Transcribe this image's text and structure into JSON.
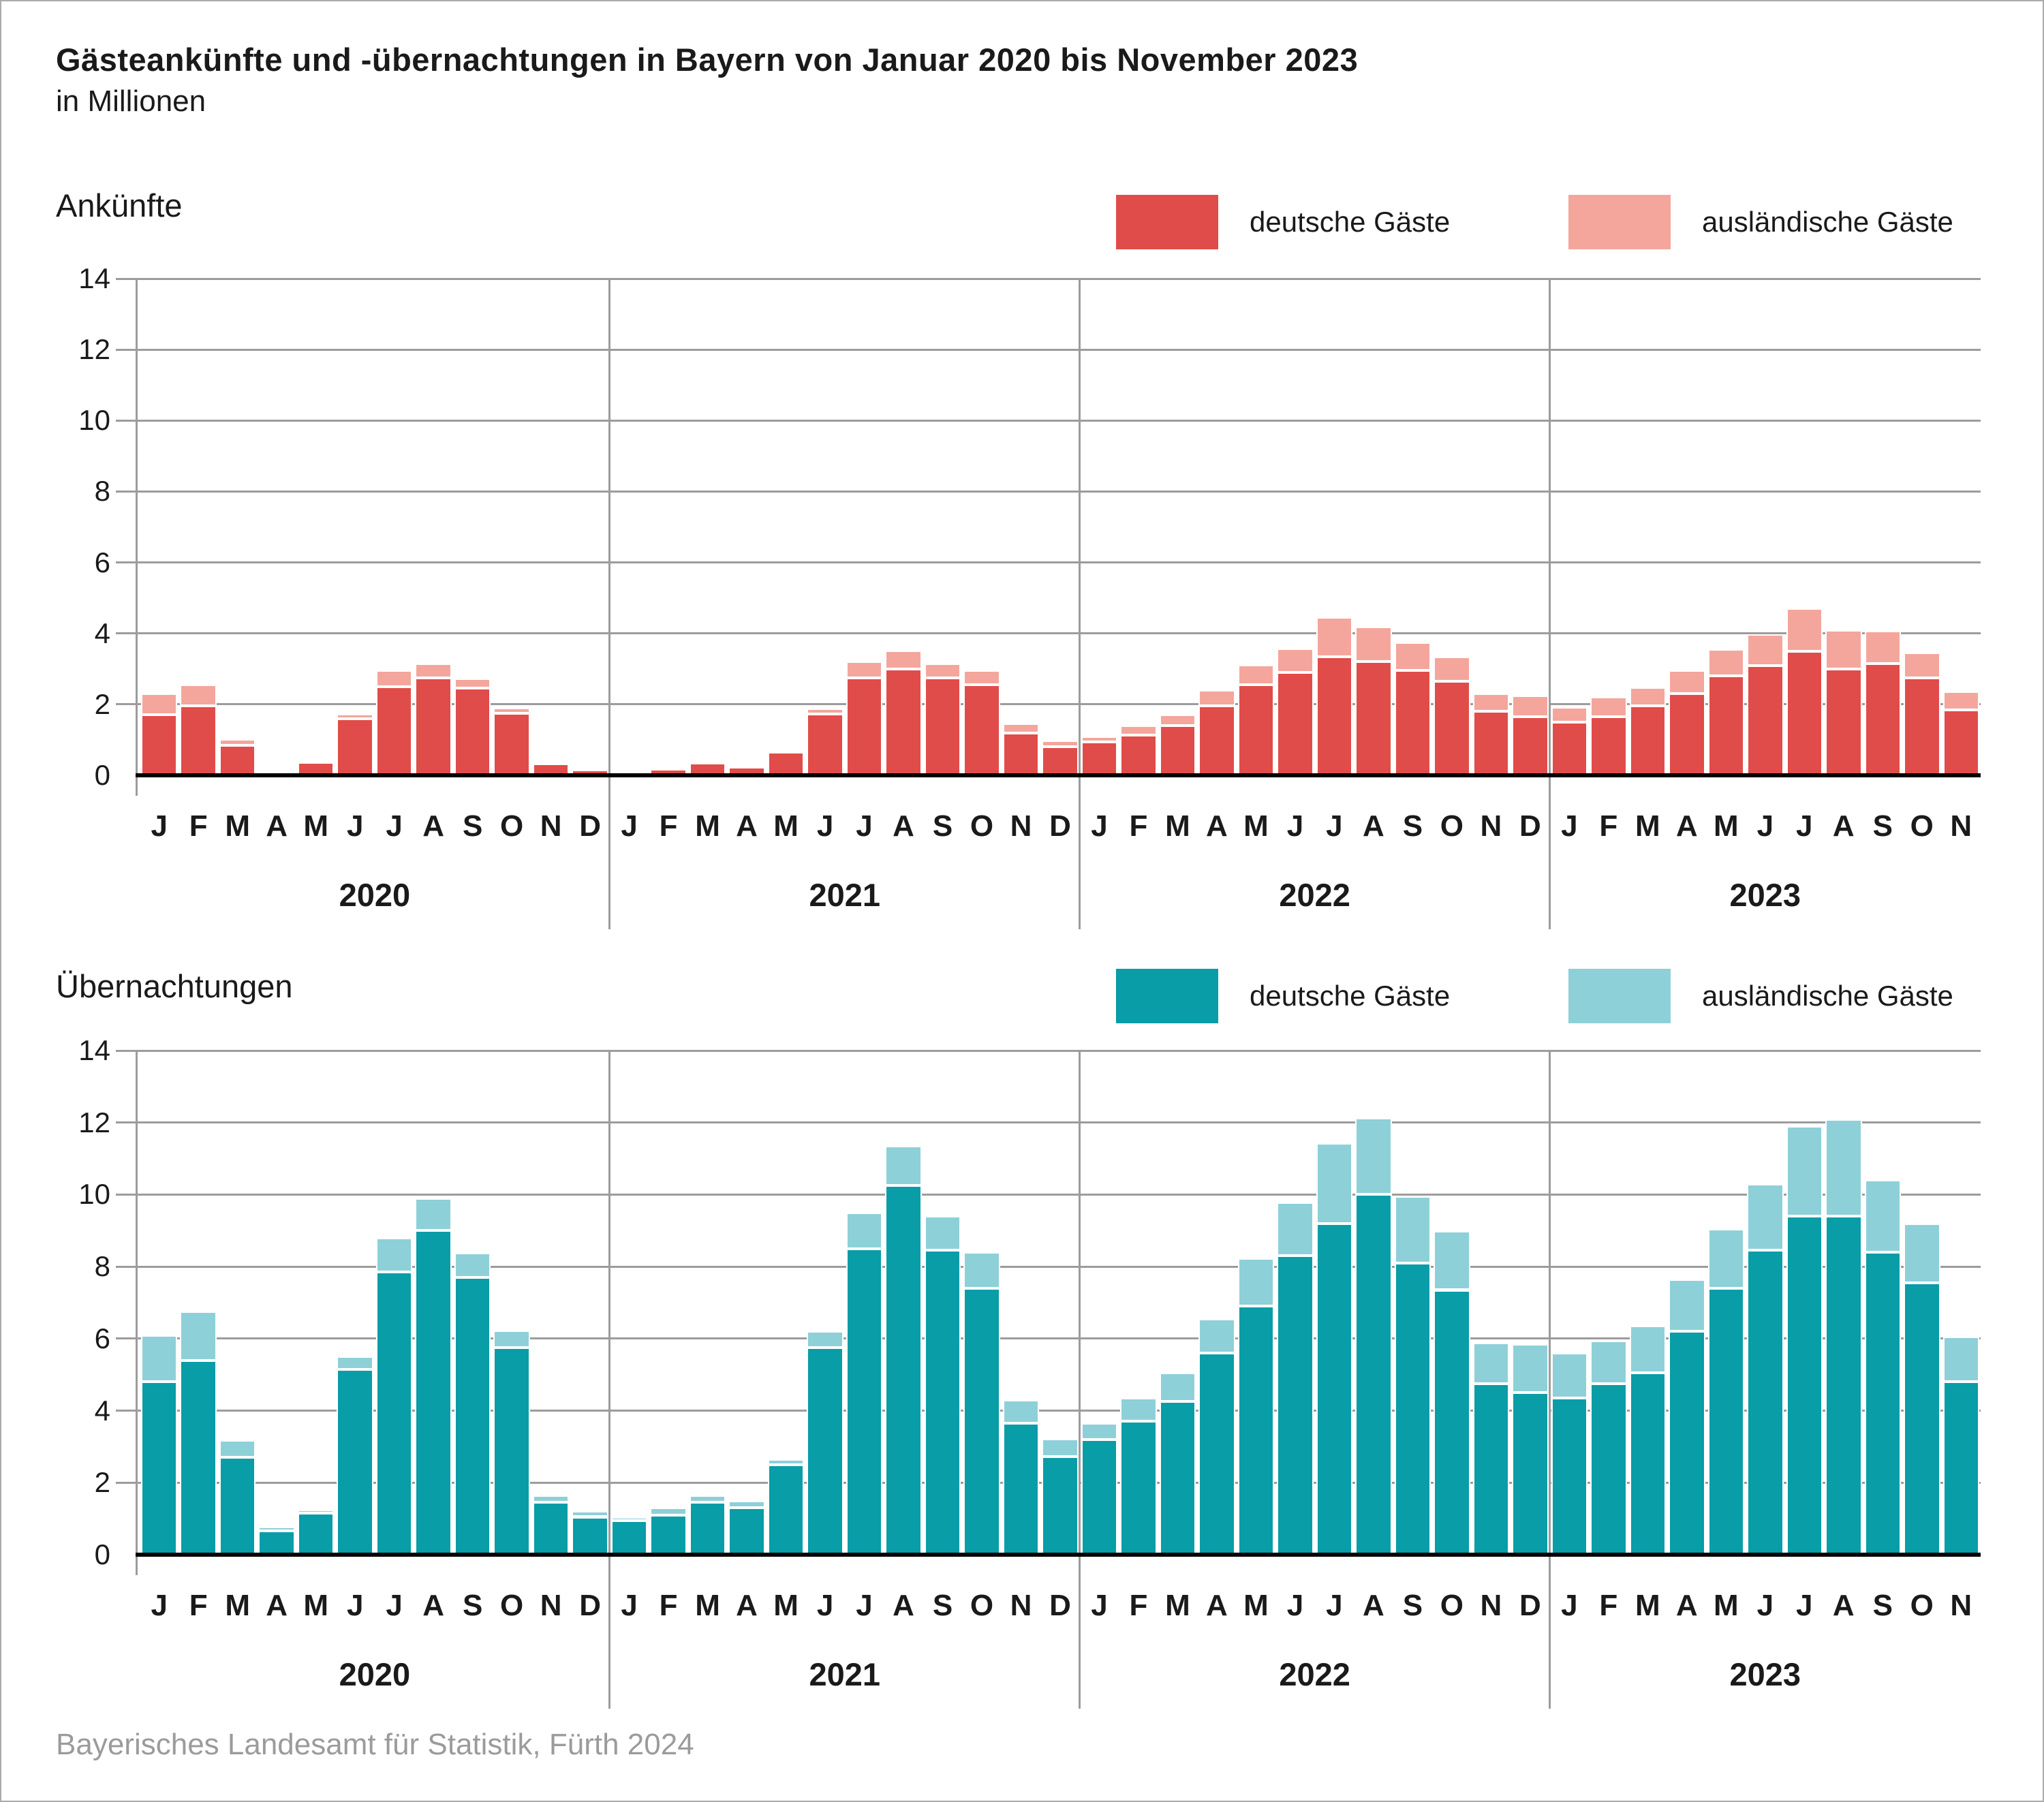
{
  "title": "Gästeankünfte und -übernachtungen in Bayern von Januar 2020 bis November 2023",
  "subtitle": "in Millionen",
  "source": "Bayerisches Landesamt für Statistik, Fürth 2024",
  "months_short": [
    "J",
    "F",
    "M",
    "A",
    "M",
    "J",
    "J",
    "A",
    "S",
    "O",
    "N",
    "D"
  ],
  "years": [
    "2020",
    "2021",
    "2022",
    "2023"
  ],
  "months_per_year": [
    12,
    12,
    12,
    11
  ],
  "colors": {
    "arrivals_domestic": "#e04c49",
    "arrivals_foreign": "#f4a69c",
    "nights_domestic": "#089da7",
    "nights_foreign": "#8ed0d8",
    "gridline": "#9c9c9c",
    "axis": "#000000",
    "source_text": "#9b9b9b"
  },
  "chart_data": [
    {
      "type": "bar",
      "stacked": true,
      "title": "Ankünfte",
      "unit": "Millionen",
      "ylim": [
        0,
        14
      ],
      "yticks": [
        0,
        2,
        4,
        6,
        8,
        10,
        12,
        14
      ],
      "grid": true,
      "legend_position": "top-right",
      "x": "months Jan 2020 – Nov 2023",
      "legend": [
        {
          "label": "deutsche Gäste",
          "color": "#e04c49"
        },
        {
          "label": "ausländische Gäste",
          "color": "#f4a69c"
        }
      ],
      "series": [
        {
          "name": "deutsche Gäste",
          "values": [
            1.7,
            1.95,
            0.85,
            0.08,
            0.37,
            1.6,
            2.5,
            2.75,
            2.45,
            1.75,
            0.33,
            0.16,
            0.12,
            0.19,
            0.35,
            0.24,
            0.65,
            1.72,
            2.75,
            3.0,
            2.75,
            2.55,
            1.2,
            0.8,
            0.95,
            1.13,
            1.4,
            1.95,
            2.55,
            2.9,
            3.35,
            3.2,
            2.95,
            2.65,
            1.8,
            1.65,
            1.5,
            1.65,
            1.95,
            2.3,
            2.8,
            3.1,
            3.5,
            3.0,
            3.15,
            2.75,
            1.85
          ]
        },
        {
          "name": "ausländische Gäste",
          "values": [
            0.6,
            0.6,
            0.17,
            0.02,
            0.04,
            0.12,
            0.45,
            0.4,
            0.27,
            0.15,
            0.04,
            0.04,
            0.02,
            0.03,
            0.04,
            0.04,
            0.06,
            0.16,
            0.45,
            0.52,
            0.4,
            0.4,
            0.25,
            0.17,
            0.15,
            0.27,
            0.3,
            0.45,
            0.57,
            0.67,
            1.1,
            0.98,
            0.8,
            0.7,
            0.5,
            0.6,
            0.42,
            0.55,
            0.52,
            0.65,
            0.75,
            0.88,
            1.2,
            1.1,
            0.93,
            0.7,
            0.52
          ]
        }
      ]
    },
    {
      "type": "bar",
      "stacked": true,
      "title": "Übernachtungen",
      "unit": "Millionen",
      "ylim": [
        0,
        14
      ],
      "yticks": [
        0,
        2,
        4,
        6,
        8,
        10,
        12,
        14
      ],
      "grid": true,
      "legend_position": "top-right",
      "x": "months Jan 2020 – Nov 2023",
      "legend": [
        {
          "label": "deutsche Gäste",
          "color": "#089da7"
        },
        {
          "label": "ausländische Gäste",
          "color": "#8ed0d8"
        }
      ],
      "series": [
        {
          "name": "deutsche Gäste",
          "values": [
            4.8,
            5.4,
            2.7,
            0.67,
            1.15,
            5.15,
            7.85,
            9.0,
            7.7,
            5.75,
            1.45,
            1.05,
            0.95,
            1.1,
            1.45,
            1.3,
            2.5,
            5.75,
            8.5,
            10.25,
            8.45,
            7.4,
            3.65,
            2.72,
            3.2,
            3.7,
            4.25,
            5.6,
            6.9,
            8.3,
            9.2,
            10.0,
            8.1,
            7.35,
            4.75,
            4.5,
            4.35,
            4.75,
            5.05,
            6.2,
            7.4,
            8.45,
            9.4,
            9.4,
            8.4,
            7.55,
            4.8
          ]
        },
        {
          "name": "ausländische Gäste",
          "values": [
            1.3,
            1.35,
            0.48,
            0.1,
            0.1,
            0.35,
            0.95,
            0.9,
            0.68,
            0.47,
            0.2,
            0.17,
            0.1,
            0.2,
            0.2,
            0.2,
            0.15,
            0.45,
            1.0,
            1.1,
            0.95,
            1.0,
            0.65,
            0.5,
            0.45,
            0.65,
            0.8,
            0.95,
            1.33,
            1.48,
            2.22,
            2.13,
            1.85,
            1.64,
            1.13,
            1.35,
            1.25,
            1.2,
            1.3,
            1.45,
            1.65,
            1.85,
            2.5,
            2.68,
            2.0,
            1.64,
            1.25
          ]
        }
      ]
    }
  ]
}
